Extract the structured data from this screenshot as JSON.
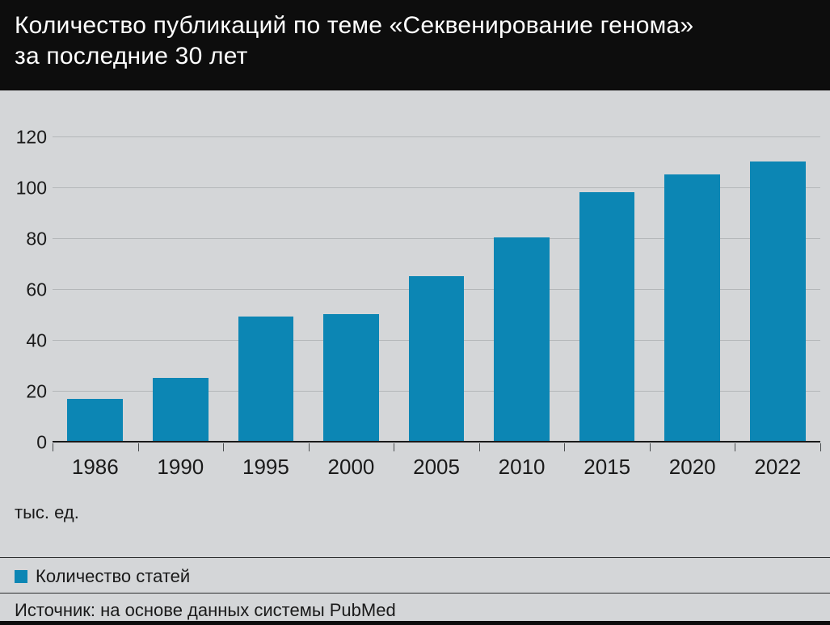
{
  "header": {
    "title_line1": "Количество публикаций по теме «Секвенирование генома»",
    "title_line2": "за последние 30 лет"
  },
  "chart_data": {
    "type": "bar",
    "title": "Количество публикаций по теме «Секвенирование генома» за последние 30 лет",
    "categories": [
      "1986",
      "1990",
      "1995",
      "2000",
      "2005",
      "2010",
      "2015",
      "2020",
      "2022"
    ],
    "values": [
      17,
      25.5,
      49.5,
      50.5,
      65.5,
      80.5,
      98.5,
      105.5,
      110.5
    ],
    "series_name": "Количество статей",
    "xlabel": "",
    "ylabel": "тыс. ед.",
    "ylim": [
      0,
      120
    ],
    "yticks": [
      0,
      20,
      40,
      60,
      80,
      100,
      120
    ],
    "grid": true,
    "legend_position": "bottom",
    "bar_color": "#0c86b4"
  },
  "units_label": "тыс. ед.",
  "legend": {
    "label": "Количество статей",
    "swatch_color": "#0c86b4"
  },
  "source": "Источник: на основе данных системы PubMed",
  "colors": {
    "header_bg": "#0d0d0d",
    "page_bg": "#d4d6d8",
    "bar": "#0c86b4",
    "grid_line": "#b4b7b9"
  }
}
